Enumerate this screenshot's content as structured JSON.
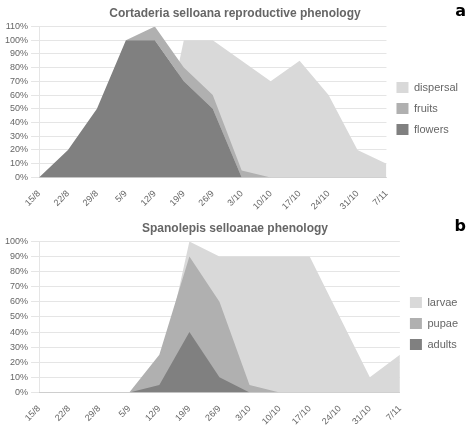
{
  "chart_data": [
    {
      "type": "area",
      "title": "Cortaderia selloana reproductive phenology",
      "annotations": [
        "a"
      ],
      "categories": [
        "15/8",
        "22/8",
        "29/8",
        "5/9",
        "12/9",
        "19/9",
        "26/9",
        "3/10",
        "10/10",
        "17/10",
        "24/10",
        "31/10",
        "7/11"
      ],
      "series": [
        {
          "name": "dispersal",
          "color": "#d9d9d9",
          "values": [
            0,
            0,
            0,
            0,
            0,
            100,
            100,
            85,
            70,
            85,
            60,
            20,
            10
          ]
        },
        {
          "name": "fruits",
          "color": "#b0b0b0",
          "stacked": true,
          "values": [
            0,
            0,
            0,
            0,
            10,
            10,
            10,
            5,
            0,
            0,
            0,
            0,
            0
          ]
        },
        {
          "name": "flowers",
          "color": "#808080",
          "stacked": true,
          "values": [
            0,
            20,
            50,
            100,
            100,
            70,
            50,
            0,
            0,
            0,
            0,
            0,
            0
          ]
        }
      ],
      "ylim": [
        0,
        110
      ],
      "yticks": [
        {
          "value": 0,
          "label": "0%"
        },
        {
          "value": 10,
          "label": "10%"
        },
        {
          "value": 20,
          "label": "20%"
        },
        {
          "value": 30,
          "label": "30%"
        },
        {
          "value": 40,
          "label": "40%"
        },
        {
          "value": 50,
          "label": "50%"
        },
        {
          "value": 60,
          "label": "60%"
        },
        {
          "value": 70,
          "label": "70%"
        },
        {
          "value": 80,
          "label": "80%"
        },
        {
          "value": 90,
          "label": "90%"
        },
        {
          "value": 100,
          "label": "100%"
        },
        {
          "value": 110,
          "label": "110%"
        }
      ],
      "grid": "y",
      "legend": "right"
    },
    {
      "type": "area",
      "title": "Spanolepis selloanae phenology",
      "annotations": [
        "b"
      ],
      "categories": [
        "15/8",
        "22/8",
        "29/8",
        "5/9",
        "12/9",
        "19/9",
        "26/9",
        "3/10",
        "10/10",
        "17/10",
        "24/10",
        "31/10",
        "7/11"
      ],
      "series": [
        {
          "name": "larvae",
          "color": "#d9d9d9",
          "values": [
            0,
            0,
            0,
            0,
            10,
            100,
            90,
            90,
            90,
            90,
            50,
            10,
            25
          ]
        },
        {
          "name": "pupae",
          "color": "#b0b0b0",
          "values": [
            0,
            0,
            0,
            0,
            25,
            90,
            60,
            5,
            0,
            0,
            0,
            0,
            0
          ]
        },
        {
          "name": "adults",
          "color": "#808080",
          "values": [
            0,
            0,
            0,
            0,
            5,
            40,
            10,
            0,
            0,
            0,
            0,
            0,
            0
          ]
        }
      ],
      "ylim": [
        0,
        100
      ],
      "yticks": [
        {
          "value": 0,
          "label": "0%"
        },
        {
          "value": 10,
          "label": "10%"
        },
        {
          "value": 20,
          "label": "20%"
        },
        {
          "value": 30,
          "label": "30%"
        },
        {
          "value": 40,
          "label": "40%"
        },
        {
          "value": 50,
          "label": "50%"
        },
        {
          "value": 60,
          "label": "60%"
        },
        {
          "value": 70,
          "label": "70%"
        },
        {
          "value": 80,
          "label": "80%"
        },
        {
          "value": 90,
          "label": "90%"
        },
        {
          "value": 100,
          "label": "100%"
        }
      ],
      "grid": "y",
      "legend": "right"
    }
  ]
}
